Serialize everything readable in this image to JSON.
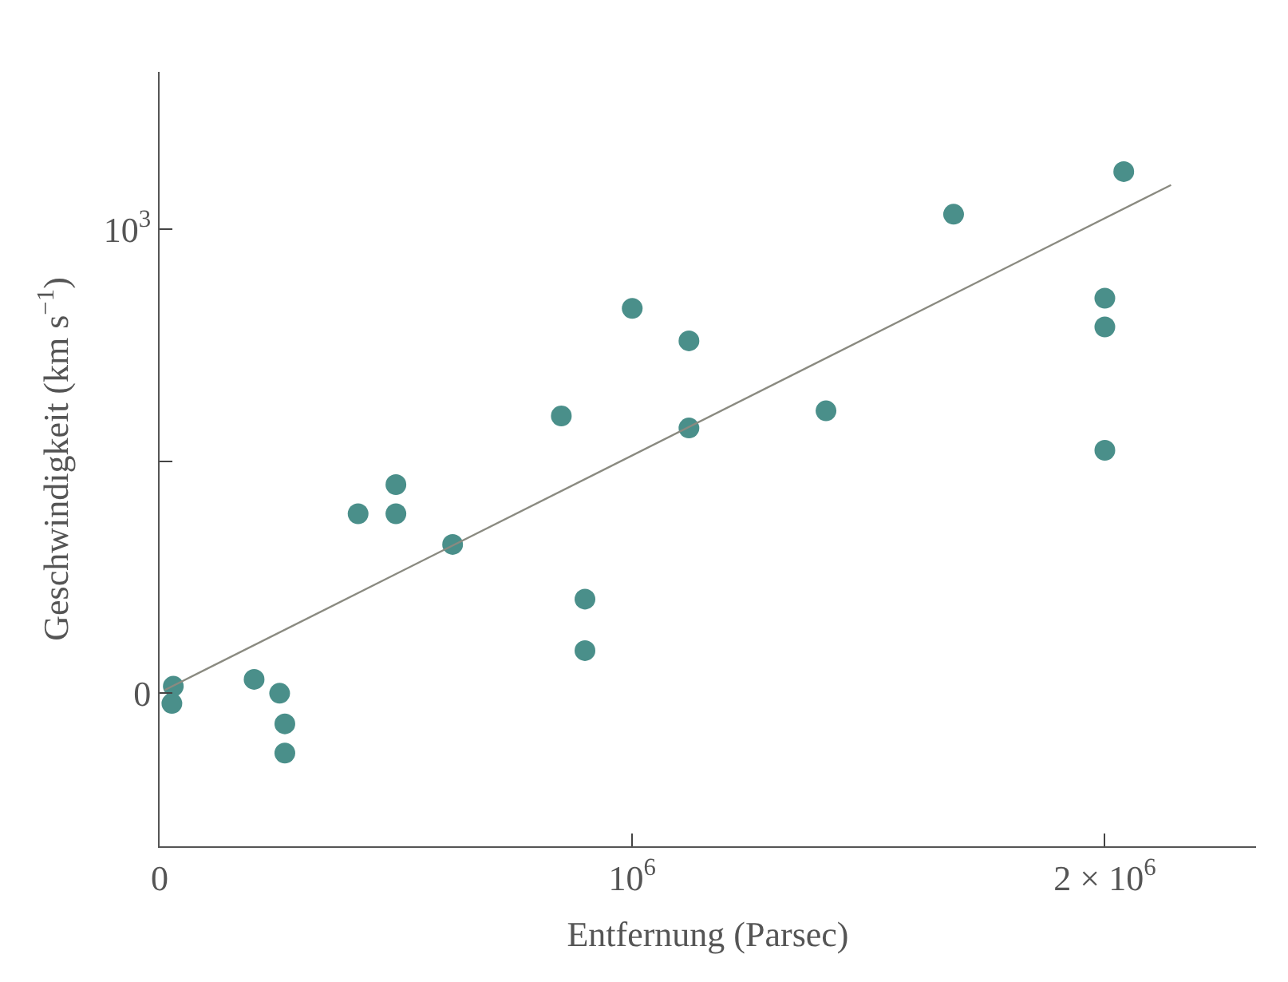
{
  "chart_data": {
    "type": "scatter",
    "xlabel": "Entfernung (Parsec)",
    "ylabel": "Geschwindigkeit (km s$^{−1}$)",
    "xlim": [
      0,
      2320000
    ],
    "ylim": [
      -330,
      1340
    ],
    "xticks": [
      0,
      {
        "value": 1000000,
        "label": "10$^{6}$"
      },
      {
        "value": 2000000,
        "label": "2 × 10$^{6}$"
      }
    ],
    "yticks": [
      0,
      {
        "value": 500,
        "label": null
      },
      {
        "value": 1000,
        "label": "10$^{3}$"
      }
    ],
    "marker": "circle",
    "series": [
      {
        "color": "#4a8f8a",
        "x": [
          29000,
          26000,
          200000,
          254000,
          265000,
          265000,
          420000,
          500000,
          500000,
          620000,
          850000,
          900000,
          900000,
          1000000,
          1120000,
          1120000,
          1410000,
          1680000,
          2000000,
          2000000,
          2000000,
          2040000
        ],
        "values": [
          15,
          -22,
          30,
          0,
          -66,
          -129,
          387,
          450,
          387,
          321,
          598,
          203,
          92,
          830,
          760,
          572,
          609,
          1033,
          852,
          790,
          524,
          1125
        ]
      },
      {
        "type": "line",
        "color": "#8a8a80",
        "marker": "none",
        "x": [
          11000,
          2140000
        ],
        "values": [
          7,
          1096
        ]
      }
    ]
  }
}
